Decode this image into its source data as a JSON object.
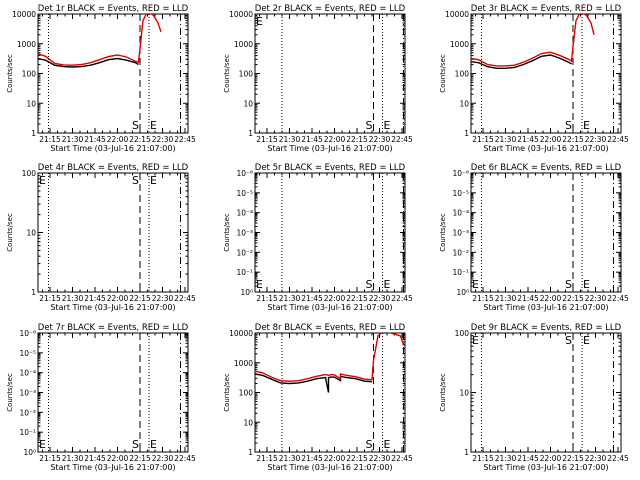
{
  "chart_data": [
    {
      "type": "line",
      "title": "Det 1r BLACK = Events, RED = LLD",
      "xlabel": "Start Time (03-Jul-16 21:07:00)",
      "ylabel": "Counts/sec",
      "yscale": "log",
      "xlim": [
        "21:07",
        "22:47"
      ],
      "ylim": [
        1,
        10000
      ],
      "xticks": [
        "21:15",
        "21:30",
        "21:45",
        "22:00",
        "22:15",
        "22:30",
        "22:45"
      ],
      "yticks": [
        "1",
        "10",
        "100",
        "1000",
        "10000"
      ],
      "markers": [
        {
          "time": "21:14",
          "style": "dotted"
        },
        {
          "time": "22:15",
          "style": "dashed",
          "label": "S"
        },
        {
          "time": "22:21",
          "style": "dotted",
          "label": "E"
        },
        {
          "time": "22:42",
          "style": "dash-dot"
        }
      ],
      "series": [
        {
          "color": "#000000",
          "x": [
            "21:07",
            "21:12",
            "21:18",
            "21:24",
            "21:30",
            "21:36",
            "21:42",
            "21:48",
            "21:54",
            "22:00",
            "22:06",
            "22:12",
            "22:14"
          ],
          "y": [
            320,
            280,
            190,
            170,
            165,
            170,
            190,
            230,
            290,
            320,
            280,
            230,
            200
          ]
        },
        {
          "color": "#e00000",
          "x": [
            "21:07",
            "21:12",
            "21:18",
            "21:24",
            "21:30",
            "21:36",
            "21:42",
            "21:48",
            "21:54",
            "22:00",
            "22:06",
            "22:12",
            "22:14",
            "22:15",
            "22:17",
            "22:20",
            "22:24",
            "22:27",
            "22:29"
          ],
          "y": [
            460,
            380,
            220,
            195,
            190,
            200,
            230,
            290,
            370,
            420,
            360,
            260,
            240,
            700,
            6000,
            12000,
            9000,
            5000,
            2500
          ]
        }
      ]
    },
    {
      "type": "line",
      "title": "Det 2r BLACK = Events, RED = LLD",
      "xlabel": "Start Time (03-Jul-16 21:07:00)",
      "ylabel": "Counts/sec",
      "yscale": "log",
      "xlim": [
        "21:07",
        "22:47"
      ],
      "ylim": [
        1,
        10000
      ],
      "xticks": [
        "21:15",
        "21:30",
        "21:45",
        "22:00",
        "22:15",
        "22:30",
        "22:45"
      ],
      "yticks": [
        "1",
        "10",
        "100",
        "1000",
        "10000"
      ],
      "markers": [
        {
          "time": "21:07",
          "style": "dotted",
          "label": "E",
          "label_pos": "top"
        },
        {
          "time": "21:25",
          "style": "dotted"
        },
        {
          "time": "22:26",
          "style": "dashed",
          "label": "S"
        },
        {
          "time": "22:32",
          "style": "dotted",
          "label": "E"
        },
        {
          "time": "22:46",
          "style": "dash-dot"
        }
      ],
      "series": []
    },
    {
      "type": "line",
      "title": "Det 3r BLACK = Events, RED = LLD",
      "xlabel": "Start Time (03-Jul-16 21:07:00)",
      "ylabel": "Counts/sec",
      "yscale": "log",
      "xlim": [
        "21:07",
        "22:47"
      ],
      "ylim": [
        1,
        10000
      ],
      "xticks": [
        "21:15",
        "21:30",
        "21:45",
        "22:00",
        "22:15",
        "22:30",
        "22:45"
      ],
      "yticks": [
        "1",
        "10",
        "100",
        "1000",
        "10000"
      ],
      "markers": [
        {
          "time": "21:14",
          "style": "dotted"
        },
        {
          "time": "22:15",
          "style": "dashed",
          "label": "S"
        },
        {
          "time": "22:21",
          "style": "dotted",
          "label": "E"
        },
        {
          "time": "22:42",
          "style": "dash-dot"
        }
      ],
      "series": [
        {
          "color": "#000000",
          "x": [
            "21:07",
            "21:12",
            "21:18",
            "21:24",
            "21:30",
            "21:36",
            "21:42",
            "21:48",
            "21:54",
            "22:00",
            "22:06",
            "22:12",
            "22:14"
          ],
          "y": [
            250,
            230,
            170,
            150,
            150,
            160,
            200,
            270,
            380,
            420,
            330,
            240,
            210
          ]
        },
        {
          "color": "#e00000",
          "x": [
            "21:07",
            "21:12",
            "21:18",
            "21:24",
            "21:30",
            "21:36",
            "21:42",
            "21:48",
            "21:54",
            "22:00",
            "22:06",
            "22:12",
            "22:14",
            "22:15",
            "22:17",
            "22:20",
            "22:24",
            "22:27",
            "22:29"
          ],
          "y": [
            320,
            290,
            200,
            180,
            180,
            190,
            240,
            330,
            470,
            520,
            410,
            300,
            260,
            800,
            6000,
            12000,
            9000,
            5000,
            2000
          ]
        }
      ]
    },
    {
      "type": "line",
      "title": "Det 4r BLACK = Events, RED = LLD",
      "xlabel": "Start Time (03-Jul-16 21:07:00)",
      "ylabel": "Counts/sec",
      "yscale": "log",
      "xlim": [
        "21:07",
        "22:47"
      ],
      "ylim": [
        1,
        100
      ],
      "xticks": [
        "21:15",
        "21:30",
        "21:45",
        "22:00",
        "22:15",
        "22:30",
        "22:45"
      ],
      "yticks": [
        "1",
        "10",
        "100"
      ],
      "markers": [
        {
          "time": "21:07",
          "style": "dotted",
          "label": "E",
          "label_pos": "top"
        },
        {
          "time": "21:14",
          "style": "dotted"
        },
        {
          "time": "22:15",
          "style": "dashed",
          "label": "S",
          "label_pos": "top"
        },
        {
          "time": "22:21",
          "style": "dotted",
          "label": "E",
          "label_pos": "top"
        },
        {
          "time": "22:42",
          "style": "dash-dot"
        }
      ],
      "series": []
    },
    {
      "type": "line",
      "title": "Det 5r BLACK = Events, RED = LLD",
      "xlabel": "Start Time (03-Jul-16 21:07:00)",
      "ylabel": "Counts/sec",
      "yscale": "log",
      "xlim": [
        "21:07",
        "22:47"
      ],
      "ylim": [
        1,
        1e-06
      ],
      "xticks": [
        "21:15",
        "21:30",
        "21:45",
        "22:00",
        "22:15",
        "22:30",
        "22:45"
      ],
      "yticks": [
        "10⁰",
        "10⁻¹",
        "10⁻²",
        "10⁻³",
        "10⁻⁴",
        "10⁻⁵",
        "10⁻⁶"
      ],
      "markers": [
        {
          "time": "21:07",
          "style": "dotted",
          "label": "E"
        },
        {
          "time": "21:25",
          "style": "dotted"
        },
        {
          "time": "22:26",
          "style": "dashed",
          "label": "S"
        },
        {
          "time": "22:32",
          "style": "dotted",
          "label": "E"
        },
        {
          "time": "22:46",
          "style": "dash-dot"
        }
      ],
      "series": []
    },
    {
      "type": "line",
      "title": "Det 6r BLACK = Events, RED = LLD",
      "xlabel": "Start Time (03-Jul-16 21:07:00)",
      "ylabel": "Counts/sec",
      "yscale": "log",
      "xlim": [
        "21:07",
        "22:47"
      ],
      "ylim": [
        1,
        1e-06
      ],
      "xticks": [
        "21:15",
        "21:30",
        "21:45",
        "22:00",
        "22:15",
        "22:30",
        "22:45"
      ],
      "yticks": [
        "10⁰",
        "10⁻¹",
        "10⁻²",
        "10⁻³",
        "10⁻⁴",
        "10⁻⁵",
        "10⁻⁶"
      ],
      "markers": [
        {
          "time": "21:07",
          "style": "dotted",
          "label": "E"
        },
        {
          "time": "21:14",
          "style": "dotted"
        },
        {
          "time": "22:15",
          "style": "dashed",
          "label": "S"
        },
        {
          "time": "22:21",
          "style": "dotted",
          "label": "E"
        },
        {
          "time": "22:42",
          "style": "dash-dot"
        }
      ],
      "series": []
    },
    {
      "type": "line",
      "title": "Det 7r BLACK = Events, RED = LLD",
      "xlabel": "Start Time (03-Jul-16 21:07:00)",
      "ylabel": "Counts/sec",
      "yscale": "log",
      "xlim": [
        "21:07",
        "22:47"
      ],
      "ylim": [
        1,
        1e-06
      ],
      "xticks": [
        "21:15",
        "21:30",
        "21:45",
        "22:00",
        "22:15",
        "22:30",
        "22:45"
      ],
      "yticks": [
        "10⁰",
        "10⁻¹",
        "10⁻²",
        "10⁻³",
        "10⁻⁴",
        "10⁻⁵",
        "10⁻⁶"
      ],
      "markers": [
        {
          "time": "21:07",
          "style": "dotted",
          "label": "E"
        },
        {
          "time": "21:14",
          "style": "dotted"
        },
        {
          "time": "22:15",
          "style": "dashed",
          "label": "S"
        },
        {
          "time": "22:21",
          "style": "dotted",
          "label": "E"
        },
        {
          "time": "22:42",
          "style": "dash-dot"
        }
      ],
      "series": []
    },
    {
      "type": "line",
      "title": "Det 8r BLACK = Events, RED = LLD",
      "xlabel": "Start Time (03-Jul-16 21:07:00)",
      "ylabel": "Counts/sec",
      "yscale": "log",
      "xlim": [
        "21:07",
        "22:47"
      ],
      "ylim": [
        1,
        10000
      ],
      "xticks": [
        "21:15",
        "21:30",
        "21:45",
        "22:00",
        "22:15",
        "22:30",
        "22:45"
      ],
      "yticks": [
        "1",
        "10",
        "100",
        "1000",
        "10000"
      ],
      "markers": [
        {
          "time": "21:25",
          "style": "dotted"
        },
        {
          "time": "22:26",
          "style": "dashed",
          "label": "S"
        },
        {
          "time": "22:32",
          "style": "dotted",
          "label": "E"
        },
        {
          "time": "22:46",
          "style": "dash-dot"
        }
      ],
      "series": [
        {
          "color": "#000000",
          "x": [
            "21:07",
            "21:12",
            "21:18",
            "21:24",
            "21:30",
            "21:36",
            "21:42",
            "21:48",
            "21:54",
            "21:56",
            "21:56",
            "21:58",
            "22:00",
            "22:04",
            "22:04",
            "22:08",
            "22:14",
            "22:20",
            "22:25"
          ],
          "y": [
            420,
            380,
            280,
            210,
            200,
            210,
            240,
            290,
            320,
            100,
            320,
            330,
            330,
            250,
            350,
            320,
            290,
            240,
            230
          ]
        },
        {
          "color": "#e00000",
          "x": [
            "21:07",
            "21:12",
            "21:18",
            "21:24",
            "21:30",
            "21:36",
            "21:42",
            "21:48",
            "21:54",
            "21:56",
            "21:58",
            "22:00",
            "22:04",
            "22:04",
            "22:08",
            "22:14",
            "22:20",
            "22:25",
            "22:26",
            "22:29",
            "22:33",
            "22:39",
            "22:44",
            "22:46"
          ],
          "y": [
            520,
            460,
            330,
            250,
            240,
            250,
            290,
            350,
            400,
            380,
            400,
            390,
            290,
            420,
            380,
            340,
            280,
            270,
            1200,
            8000,
            12000,
            9500,
            8000,
            4000
          ]
        }
      ]
    },
    {
      "type": "line",
      "title": "Det 9r BLACK = Events, RED = LLD",
      "xlabel": "Start Time (03-Jul-16 21:07:00)",
      "ylabel": "Counts/sec",
      "yscale": "log",
      "xlim": [
        "21:07",
        "22:47"
      ],
      "ylim": [
        1,
        100
      ],
      "xticks": [
        "21:15",
        "21:30",
        "21:45",
        "22:00",
        "22:15",
        "22:30",
        "22:45"
      ],
      "yticks": [
        "1",
        "10",
        "100"
      ],
      "markers": [
        {
          "time": "21:07",
          "style": "dotted",
          "label": "E",
          "label_pos": "top"
        },
        {
          "time": "21:14",
          "style": "dotted"
        },
        {
          "time": "22:15",
          "style": "dashed",
          "label": "S",
          "label_pos": "top"
        },
        {
          "time": "22:21",
          "style": "dotted",
          "label": "E",
          "label_pos": "top"
        },
        {
          "time": "22:42",
          "style": "dash-dot"
        }
      ],
      "series": []
    }
  ]
}
